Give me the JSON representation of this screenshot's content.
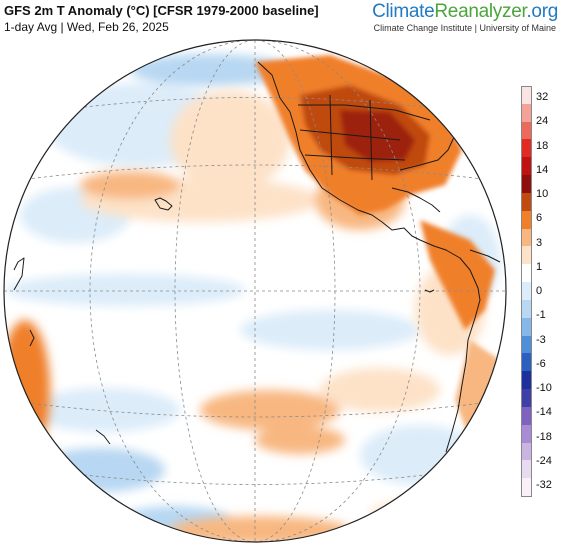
{
  "header": {
    "title": "GFS 2m T Anomaly (°C) [CFSR 1979-2000 baseline]",
    "subtitle": "1-day Avg | Wed, Feb 26, 2025"
  },
  "brand": {
    "part1": "Climate",
    "part2": "Reanalyzer",
    "part3": ".org",
    "affiliation": "Climate Change Institute | University of Maine"
  },
  "legend": {
    "labels": [
      "32",
      "24",
      "18",
      "14",
      "10",
      "6",
      "3",
      "1",
      "0",
      "-1",
      "-3",
      "-6",
      "-10",
      "-14",
      "-18",
      "-24",
      "-32"
    ],
    "colors": [
      "#fbe3e1",
      "#f3a298",
      "#ec6a5c",
      "#e32a22",
      "#c01212",
      "#8e0f0e",
      "#c04a10",
      "#f07f2a",
      "#f8b781",
      "#fde2c8",
      "#ffffff",
      "#dcecf9",
      "#b7d7f2",
      "#85b8e8",
      "#4f8fd9",
      "#2b5fc2",
      "#1e2f9e",
      "#3f3fa8",
      "#7d62c0",
      "#a98ad5",
      "#cbb3e2",
      "#e8daf0",
      "#f9f0f8"
    ],
    "palette": {
      "warm_light": "#fde2c8",
      "warm_mid": "#f8b781",
      "warm_strong": "#f07f2a",
      "warm_deep": "#c04a10",
      "cool_light": "#dcecf9",
      "cool_mid": "#b7d7f2",
      "cool_strong": "#85b8e8",
      "cool_deep": "#4f8fd9",
      "land_outline": "#1a1a1a"
    }
  }
}
